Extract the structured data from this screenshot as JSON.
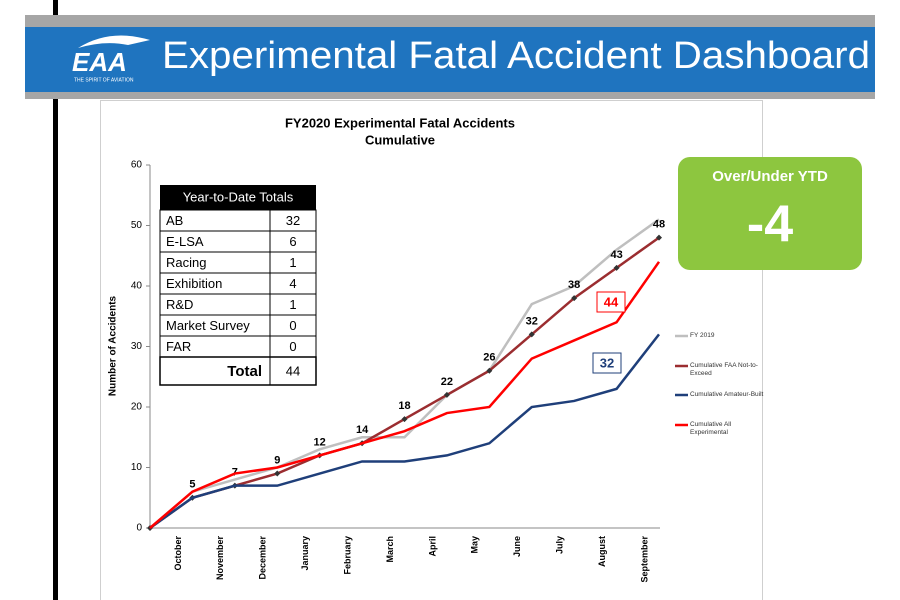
{
  "header": {
    "logo": "EAA",
    "tagline": "THE SPIRIT OF AVIATION",
    "title": "Experimental Fatal Accident Dashboard"
  },
  "over_under": {
    "label": "Over/Under YTD",
    "value": "-4"
  },
  "ytd_table": {
    "title": "Year-to-Date Totals",
    "rows": [
      [
        "AB",
        32
      ],
      [
        "E-LSA",
        6
      ],
      [
        "Racing",
        1
      ],
      [
        "Exhibition",
        4
      ],
      [
        "R&D",
        1
      ],
      [
        "Market Survey",
        0
      ],
      [
        "FAR",
        0
      ]
    ],
    "total": [
      "Total",
      44
    ]
  },
  "chart_data": {
    "type": "line",
    "title": "FY2020 Experimental Fatal Accidents",
    "subtitle": "Cumulative",
    "y_label": "Number of Accidents",
    "categories": [
      null,
      "October",
      "November",
      "December",
      "January",
      "February",
      "March",
      "April",
      "May",
      "June",
      "July",
      "August",
      "September"
    ],
    "ylim": [
      0,
      60
    ],
    "yticks": [
      0,
      10,
      20,
      30,
      40,
      50,
      60
    ],
    "series": [
      {
        "name": "FY 2019",
        "color": "#bfbfbf",
        "values": [
          0,
          6,
          8,
          10,
          13,
          15,
          15,
          22,
          26,
          37,
          40,
          46,
          51
        ]
      },
      {
        "name": "Cumulative FAA Not-to-Exceed",
        "color": "#9b2d30",
        "values": [
          0,
          5,
          7,
          9,
          12,
          14,
          18,
          22,
          26,
          32,
          38,
          43,
          48
        ],
        "markers": true,
        "labels": true
      },
      {
        "name": "Cumulative Amateur-Built",
        "color": "#1f3f7a",
        "values": [
          0,
          5,
          7,
          7,
          9,
          11,
          11,
          12,
          14,
          20,
          21,
          23,
          32
        ]
      },
      {
        "name": "Cumulative All Experimental",
        "color": "#ff0000",
        "values": [
          0,
          6,
          9,
          10,
          12,
          14,
          16,
          19,
          20,
          28,
          31,
          34,
          44
        ]
      }
    ],
    "annotations": [
      {
        "text": "44",
        "color": "#ff0000"
      },
      {
        "text": "32",
        "color": "#1f3f7a"
      }
    ]
  }
}
